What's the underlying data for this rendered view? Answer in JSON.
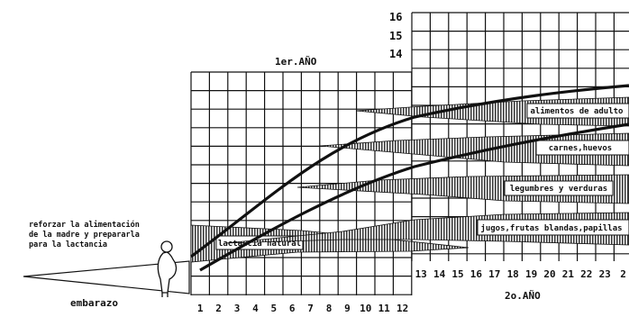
{
  "headers": {
    "year1": "1er.AÑO",
    "year2": "2o.AÑO"
  },
  "x_labels": {
    "year1": [
      "1",
      "2",
      "3",
      "4",
      "5",
      "6",
      "7",
      "8",
      "9",
      "10",
      "11",
      "12"
    ],
    "year2": [
      "13",
      "14",
      "15",
      "16",
      "17",
      "18",
      "19",
      "20",
      "21",
      "22",
      "23",
      "2"
    ]
  },
  "y_labels": [
    "16",
    "15",
    "14"
  ],
  "left_note": [
    "reforzar la alimentación",
    "de la madre y prepararla",
    "para la lactancia"
  ],
  "embarazo_label": "embarazo",
  "food_bands": [
    {
      "id": "lactancia",
      "label": "lactancia natural"
    },
    {
      "id": "jugos",
      "label": "jugos,frutas blandas,papillas"
    },
    {
      "id": "legumbres",
      "label": "legumbres y verduras"
    },
    {
      "id": "carnes",
      "label": "carnes,huevos"
    },
    {
      "id": "alimentos",
      "label": "alimentos de adulto"
    }
  ],
  "colors": {
    "ink": "#111111",
    "paper": "#ffffff"
  }
}
